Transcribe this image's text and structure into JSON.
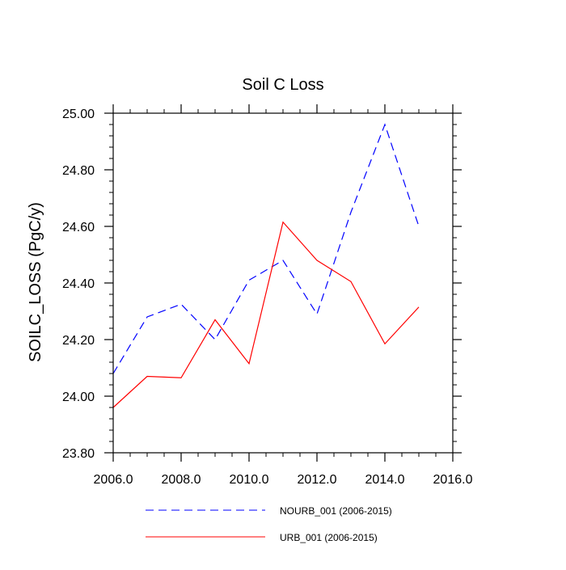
{
  "chart_data": {
    "type": "line",
    "title": "Soil C Loss",
    "xlabel": "",
    "ylabel": "SOILC_LOSS  (PgC/y)",
    "xlim": [
      2006,
      2016
    ],
    "ylim": [
      23.8,
      25.0
    ],
    "x_ticks": [
      "2006.0",
      "2008.0",
      "2010.0",
      "2012.0",
      "2014.0",
      "2016.0"
    ],
    "y_ticks": [
      "23.80",
      "24.00",
      "24.20",
      "24.40",
      "24.60",
      "24.80",
      "25.00"
    ],
    "x": [
      2006,
      2007,
      2008,
      2009,
      2010,
      2011,
      2012,
      2013,
      2014,
      2015
    ],
    "series": [
      {
        "name": "NOURB_001 (2006-2015)",
        "color": "#0000ff",
        "dash": "dashed",
        "values": [
          24.08,
          24.28,
          24.325,
          24.2,
          24.41,
          24.48,
          24.29,
          24.65,
          24.96,
          24.6
        ]
      },
      {
        "name": "URB_001 (2006-2015)",
        "color": "#ff0000",
        "dash": "solid",
        "values": [
          23.96,
          24.07,
          24.065,
          24.27,
          24.115,
          24.615,
          24.48,
          24.405,
          24.185,
          24.315
        ]
      }
    ],
    "grid": false,
    "legend_position": "bottom"
  }
}
